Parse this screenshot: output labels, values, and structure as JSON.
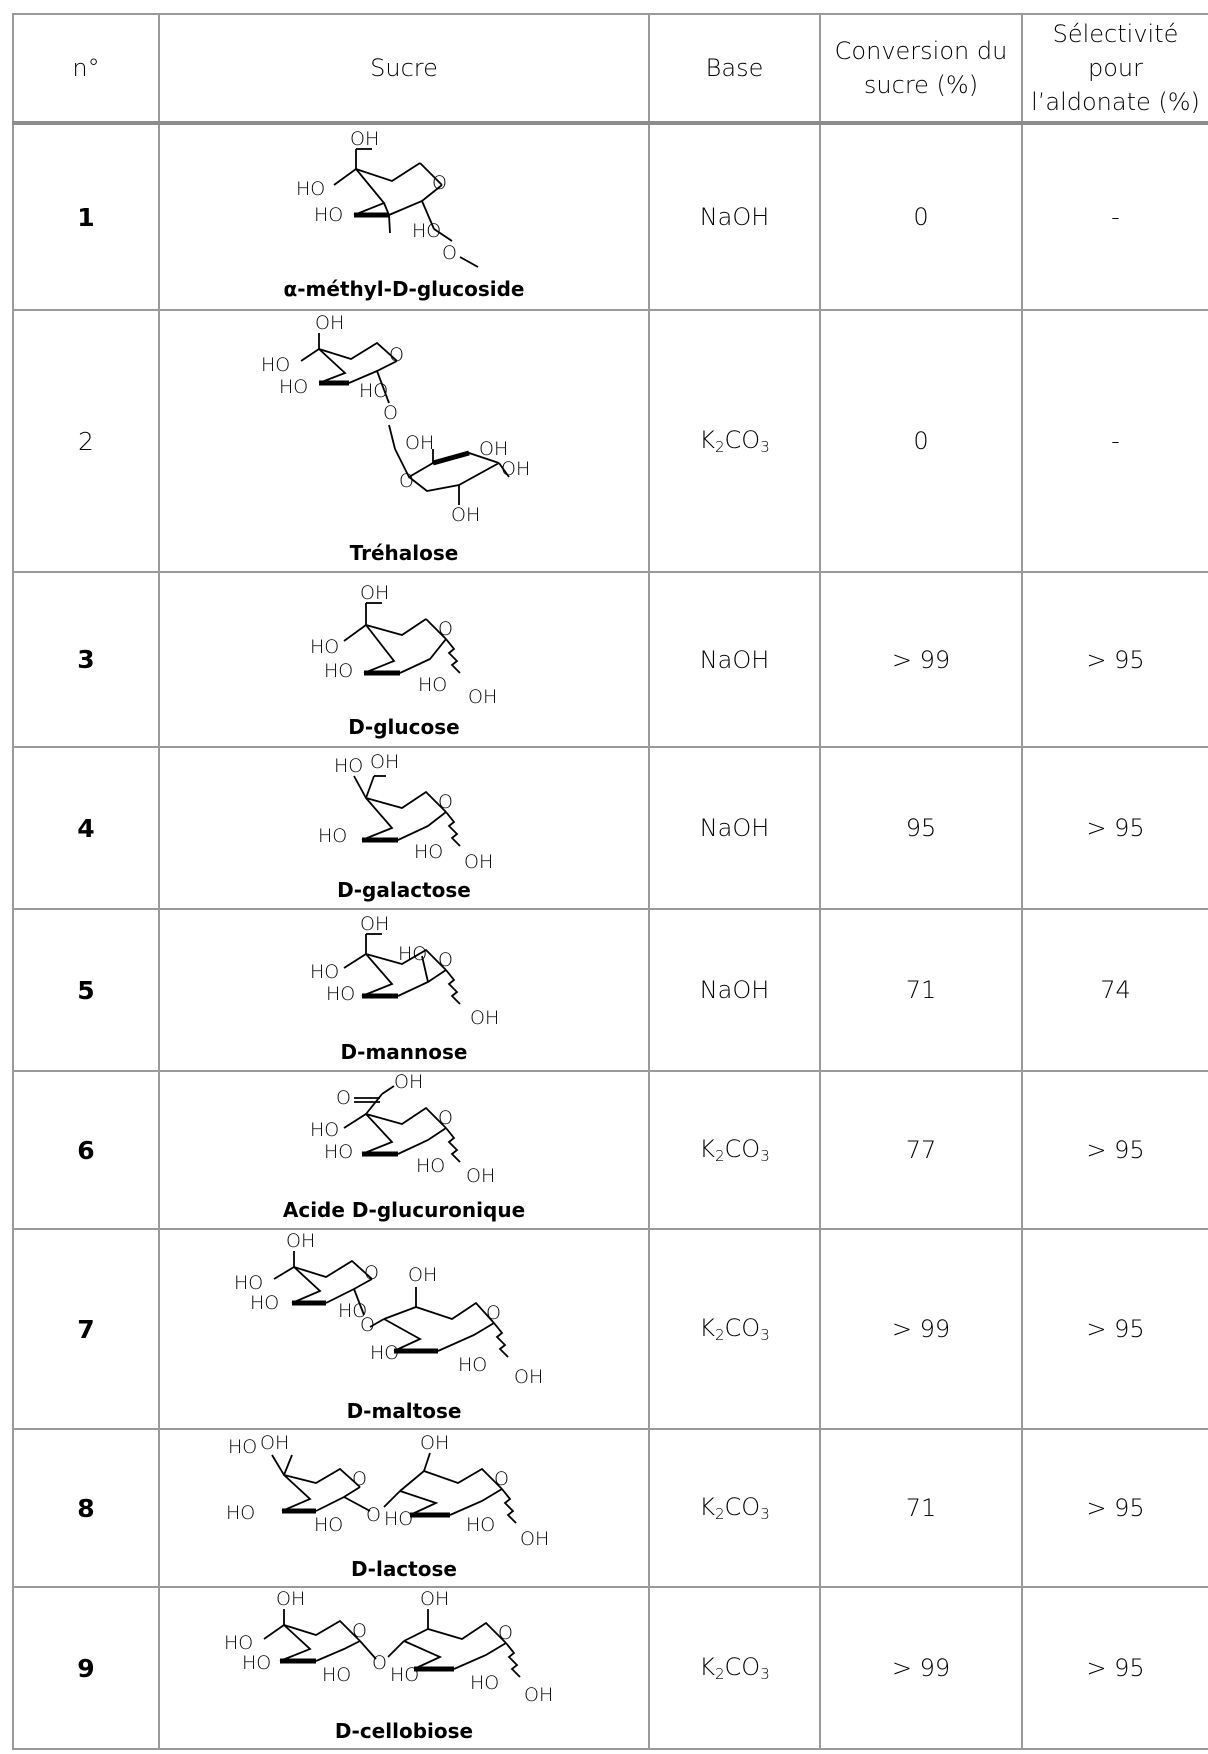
{
  "table": {
    "headers": {
      "num": "n°",
      "sugar": "Sucre",
      "base": "Base",
      "conversion": [
        "Conversion du",
        "sucre (%)"
      ],
      "selectivity": [
        "Sélectivité",
        "pour",
        "l’aldonate (%)"
      ]
    },
    "rows": [
      {
        "num": "1",
        "num_style": "bold",
        "name_parts": [
          "α-méthyl-",
          "D",
          "-glucoside"
        ],
        "base": "NaOH",
        "conversion": "0",
        "selectivity": "-"
      },
      {
        "num": "2",
        "num_style": "light",
        "name_parts": [
          "Tréhalose"
        ],
        "base": "K2CO3",
        "conversion": "0",
        "selectivity": "-"
      },
      {
        "num": "3",
        "num_style": "bold",
        "name_parts": [
          "",
          "D",
          "-glucose"
        ],
        "base": "NaOH",
        "conversion": "> 99",
        "selectivity": "> 95"
      },
      {
        "num": "4",
        "num_style": "bold",
        "name_parts": [
          "",
          "D",
          "-galactose"
        ],
        "base": "NaOH",
        "conversion": "95",
        "selectivity": "> 95"
      },
      {
        "num": "5",
        "num_style": "bold",
        "name_parts": [
          "",
          "D",
          "-mannose"
        ],
        "base": "NaOH",
        "conversion": "71",
        "selectivity": "74"
      },
      {
        "num": "6",
        "num_style": "bold",
        "name_parts": [
          "Acide ",
          "D",
          "-glucuronique"
        ],
        "base": "K2CO3",
        "conversion": "77",
        "selectivity": "> 95"
      },
      {
        "num": "7",
        "num_style": "bold",
        "name_parts": [
          "",
          "D",
          "-maltose"
        ],
        "base": "K2CO3",
        "conversion": "> 99",
        "selectivity": "> 95"
      },
      {
        "num": "8",
        "num_style": "bold",
        "name_parts": [
          "",
          "D",
          "-lactose"
        ],
        "base": "K2CO3",
        "conversion": "71",
        "selectivity": "> 95"
      },
      {
        "num": "9",
        "num_style": "bold",
        "name_parts": [
          "",
          "D",
          "-cellobiose"
        ],
        "base": "K2CO3",
        "conversion": "> 99",
        "selectivity": "> 95"
      }
    ]
  },
  "structure_labels": {
    "OH": "OH",
    "HO": "HO",
    "O": "O"
  }
}
